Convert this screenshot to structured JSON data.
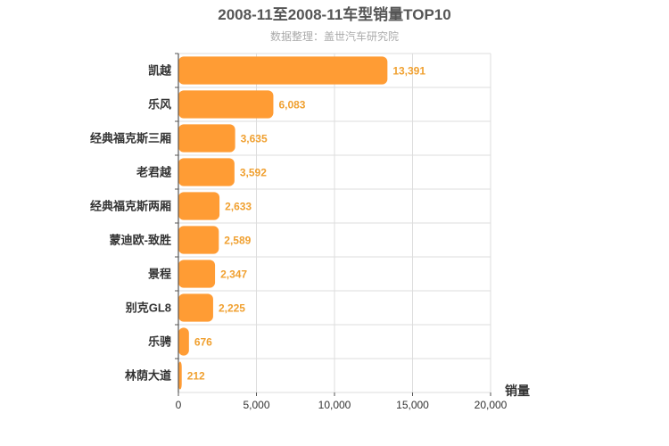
{
  "chart_data": {
    "type": "bar",
    "orientation": "horizontal",
    "title": "2008-11至2008-11车型销量TOP10",
    "subtitle": "数据整理：盖世汽车研究院",
    "categories": [
      "凯越",
      "乐风",
      "经典福克斯三厢",
      "老君越",
      "经典福克斯两厢",
      "蒙迪欧-致胜",
      "景程",
      "别克GL8",
      "乐骋",
      "林荫大道"
    ],
    "values": [
      13391,
      6083,
      3635,
      3592,
      2633,
      2589,
      2347,
      2225,
      676,
      212
    ],
    "value_labels": [
      "13,391",
      "6,083",
      "3,635",
      "3,592",
      "2,633",
      "2,589",
      "2,347",
      "2,225",
      "676",
      "212"
    ],
    "xlabel": "销量",
    "ylabel": "",
    "xlim": [
      0,
      20000
    ],
    "xticks": [
      0,
      5000,
      10000,
      15000,
      20000
    ],
    "xtick_labels": [
      "0",
      "5,000",
      "10,000",
      "15,000",
      "20,000"
    ],
    "grid": true,
    "bar_color": "#ff9c34",
    "label_color": "#f0a030"
  }
}
